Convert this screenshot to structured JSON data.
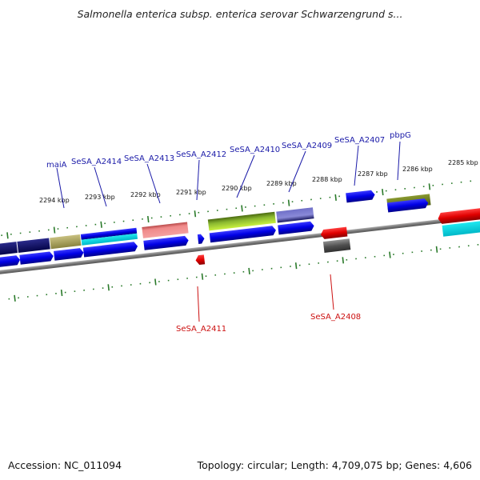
{
  "title": "Salmonella enterica subsp. enterica serovar Schwarzengrund s...",
  "footer": {
    "accession": "Accession: NC_011094",
    "summary": "Topology: circular; Length: 4,709,075 bp; Genes: 4,606"
  },
  "colors": {
    "forward_label": "#1a1aa8",
    "reverse_label": "#cc1010",
    "tick": "#2a7a2a",
    "backbone": "#888888"
  },
  "kbp_labels": [
    "2294 kbp",
    "2293 kbp",
    "2292 kbp",
    "2291 kbp",
    "2290 kbp",
    "2289 kbp",
    "2288 kbp",
    "2287 kbp",
    "2286 kbp",
    "2285 kbp"
  ],
  "gene_labels_forward": [
    "maiA",
    "SeSA_A2414",
    "SeSA_A2413",
    "SeSA_A2412",
    "SeSA_A2410",
    "SeSA_A2409",
    "SeSA_A2407",
    "pbpG"
  ],
  "gene_labels_reverse": [
    "SeSA_A2411",
    "SeSA_A2408"
  ]
}
